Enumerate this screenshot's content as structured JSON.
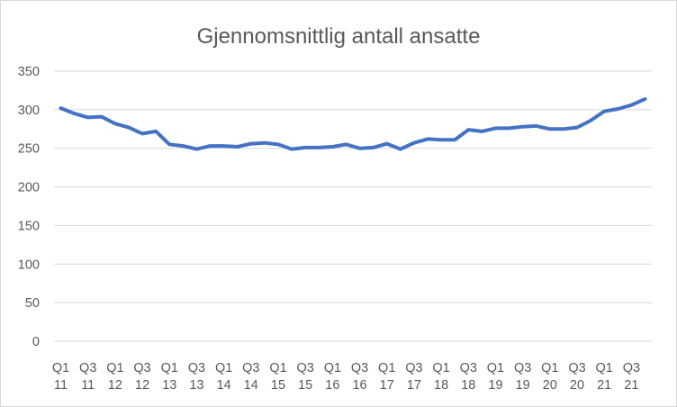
{
  "chart_data": {
    "type": "line",
    "title": "Gjennomsnittlig antall ansatte",
    "xlabel": "",
    "ylabel": "",
    "ylim": [
      0,
      350
    ],
    "y_ticks": [
      0,
      50,
      100,
      150,
      200,
      250,
      300,
      350
    ],
    "grid": true,
    "legend": "none",
    "x": [
      "Q1 11",
      "Q2 11",
      "Q3 11",
      "Q4 11",
      "Q1 12",
      "Q2 12",
      "Q3 12",
      "Q4 12",
      "Q1 13",
      "Q2 13",
      "Q3 13",
      "Q4 13",
      "Q1 14",
      "Q2 14",
      "Q3 14",
      "Q4 14",
      "Q1 15",
      "Q2 15",
      "Q3 15",
      "Q4 15",
      "Q1 16",
      "Q2 16",
      "Q3 16",
      "Q4 16",
      "Q1 17",
      "Q2 17",
      "Q3 17",
      "Q4 17",
      "Q1 18",
      "Q2 18",
      "Q3 18",
      "Q4 18",
      "Q1 19",
      "Q2 19",
      "Q3 19",
      "Q4 19",
      "Q1 20",
      "Q2 20",
      "Q3 20",
      "Q4 20",
      "Q1 21",
      "Q2 21",
      "Q3 21",
      "Q4 21"
    ],
    "x_tick_labels": [
      {
        "quarter": "Q1",
        "year": "11"
      },
      {
        "quarter": "Q3",
        "year": "11"
      },
      {
        "quarter": "Q1",
        "year": "12"
      },
      {
        "quarter": "Q3",
        "year": "12"
      },
      {
        "quarter": "Q1",
        "year": "13"
      },
      {
        "quarter": "Q3",
        "year": "13"
      },
      {
        "quarter": "Q1",
        "year": "14"
      },
      {
        "quarter": "Q3",
        "year": "14"
      },
      {
        "quarter": "Q1",
        "year": "15"
      },
      {
        "quarter": "Q3",
        "year": "15"
      },
      {
        "quarter": "Q1",
        "year": "16"
      },
      {
        "quarter": "Q3",
        "year": "16"
      },
      {
        "quarter": "Q1",
        "year": "17"
      },
      {
        "quarter": "Q3",
        "year": "17"
      },
      {
        "quarter": "Q1",
        "year": "18"
      },
      {
        "quarter": "Q3",
        "year": "18"
      },
      {
        "quarter": "Q1",
        "year": "19"
      },
      {
        "quarter": "Q3",
        "year": "19"
      },
      {
        "quarter": "Q1",
        "year": "20"
      },
      {
        "quarter": "Q3",
        "year": "20"
      },
      {
        "quarter": "Q1",
        "year": "21"
      },
      {
        "quarter": "Q3",
        "year": "21"
      }
    ],
    "series": [
      {
        "values": [
          302,
          295,
          290,
          291,
          282,
          277,
          269,
          272,
          255,
          253,
          249,
          253,
          253,
          252,
          256,
          257,
          255,
          249,
          251,
          251,
          252,
          255,
          250,
          251,
          256,
          249,
          257,
          262,
          261,
          261,
          274,
          272,
          276,
          276,
          278,
          279,
          275,
          275,
          277,
          286,
          298,
          301,
          306,
          314
        ],
        "color": "#4472c4"
      }
    ],
    "colors": {
      "line": "#4472c4",
      "grid": "#d9d9d9",
      "text": "#595959"
    }
  }
}
